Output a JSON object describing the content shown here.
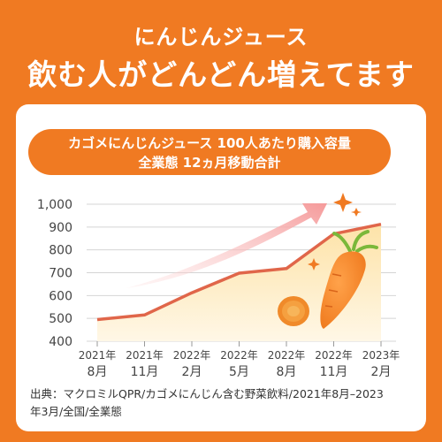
{
  "header": {
    "subtitle": "にんじんジュース",
    "title": "飲む人がどんどん増えてます"
  },
  "chart_data": {
    "type": "area",
    "title_line1": "カゴメにんじんジュース 100人あたり購入容量",
    "title_line2": "全業態 12ヵ月移動合計",
    "categories": [
      "2021年 8月",
      "2021年 11月",
      "2022年 2月",
      "2022年 5月",
      "2022年 8月",
      "2022年 11月",
      "2023年 2月"
    ],
    "x_ticks": [
      {
        "year": "2021年",
        "month": "8月"
      },
      {
        "year": "2021年",
        "month": "11月"
      },
      {
        "year": "2022年",
        "month": "2月"
      },
      {
        "year": "2022年",
        "month": "5月"
      },
      {
        "year": "2022年",
        "month": "8月"
      },
      {
        "year": "2022年",
        "month": "11月"
      },
      {
        "year": "2023年",
        "month": "2月"
      }
    ],
    "values": [
      495,
      515,
      612,
      698,
      718,
      870,
      912
    ],
    "y_ticks": [
      "1,000",
      "900",
      "800",
      "700",
      "600",
      "500",
      "400"
    ],
    "ylim": [
      400,
      1000
    ],
    "grid": "horizontal",
    "colors": {
      "line": "#E0664A",
      "fill_top": "#FDE3A8",
      "fill_bottom": "#FFF7E6",
      "accent": "#F07A22",
      "arrow": "#F6A0A0"
    }
  },
  "footer": {
    "source_line1": "出典：マクロミルQPR/カゴメにんじん含む野菜飲料/2021年8月–2023",
    "source_line2": "年3月/全国/全業態"
  }
}
